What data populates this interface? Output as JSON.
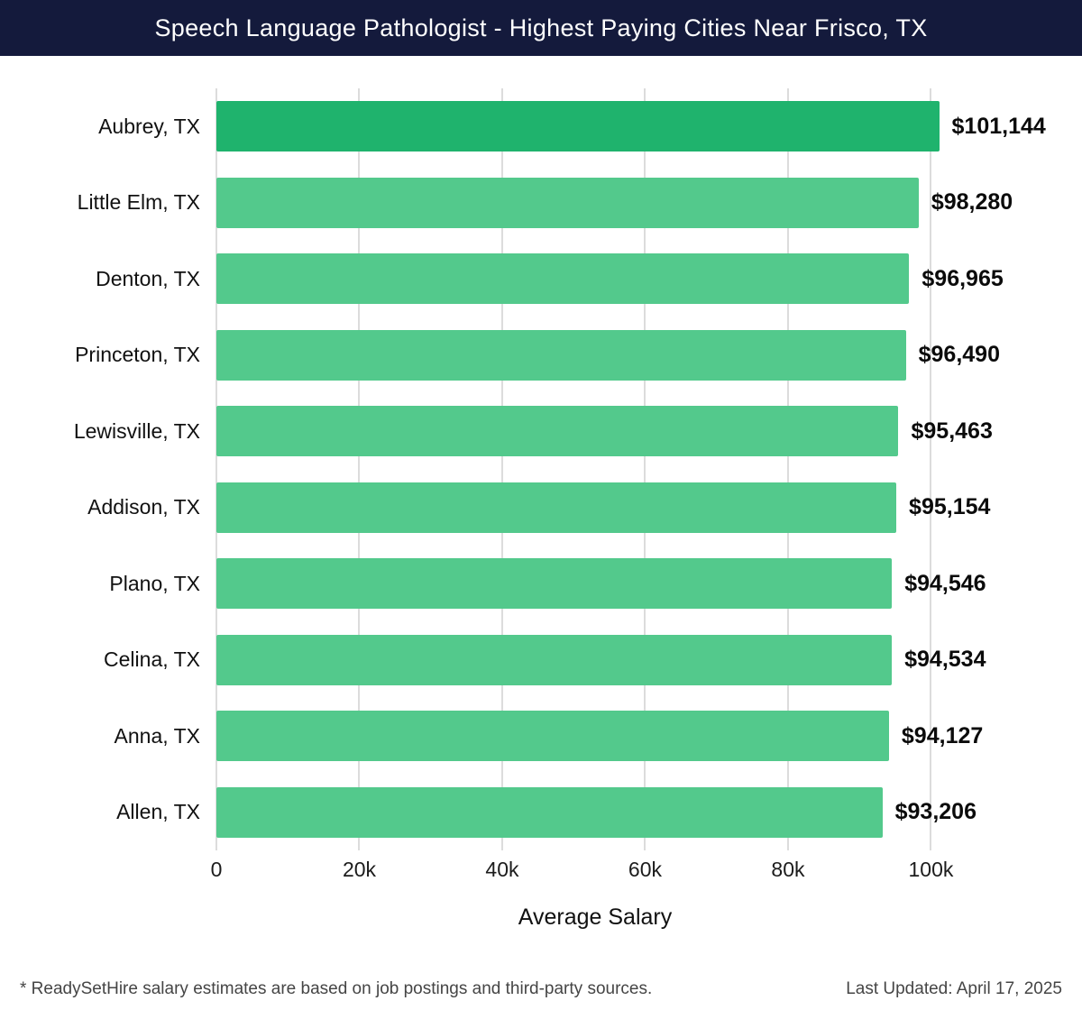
{
  "header": {
    "title": "Speech Language Pathologist - Highest Paying Cities Near Frisco, TX"
  },
  "chart_data": {
    "type": "bar",
    "orientation": "horizontal",
    "title": "Speech Language Pathologist - Highest Paying Cities Near Frisco, TX",
    "categories": [
      "Aubrey, TX",
      "Little Elm, TX",
      "Denton, TX",
      "Princeton, TX",
      "Lewisville, TX",
      "Addison, TX",
      "Plano, TX",
      "Celina, TX",
      "Anna, TX",
      "Allen, TX"
    ],
    "values": [
      101144,
      98280,
      96965,
      96490,
      95463,
      95154,
      94546,
      94534,
      94127,
      93206
    ],
    "value_labels": [
      "$101,144",
      "$98,280",
      "$96,965",
      "$96,490",
      "$95,463",
      "$95,154",
      "$94,546",
      "$94,534",
      "$94,127",
      "$93,206"
    ],
    "xlabel": "Average Salary",
    "ylabel": "",
    "xlim": [
      0,
      106000
    ],
    "xticks": [
      0,
      20000,
      40000,
      60000,
      80000,
      100000
    ],
    "xtick_labels": [
      "0",
      "20k",
      "40k",
      "60k",
      "80k",
      "100k"
    ],
    "grid": true,
    "legend": "none",
    "highlight_color": "#1fb36d",
    "bar_color": "#53c98c",
    "gridline_color": "#dcdcdc"
  },
  "footer": {
    "note": "* ReadySetHire salary estimates are based on job postings and third-party sources.",
    "updated": "Last Updated: April 17, 2025"
  }
}
